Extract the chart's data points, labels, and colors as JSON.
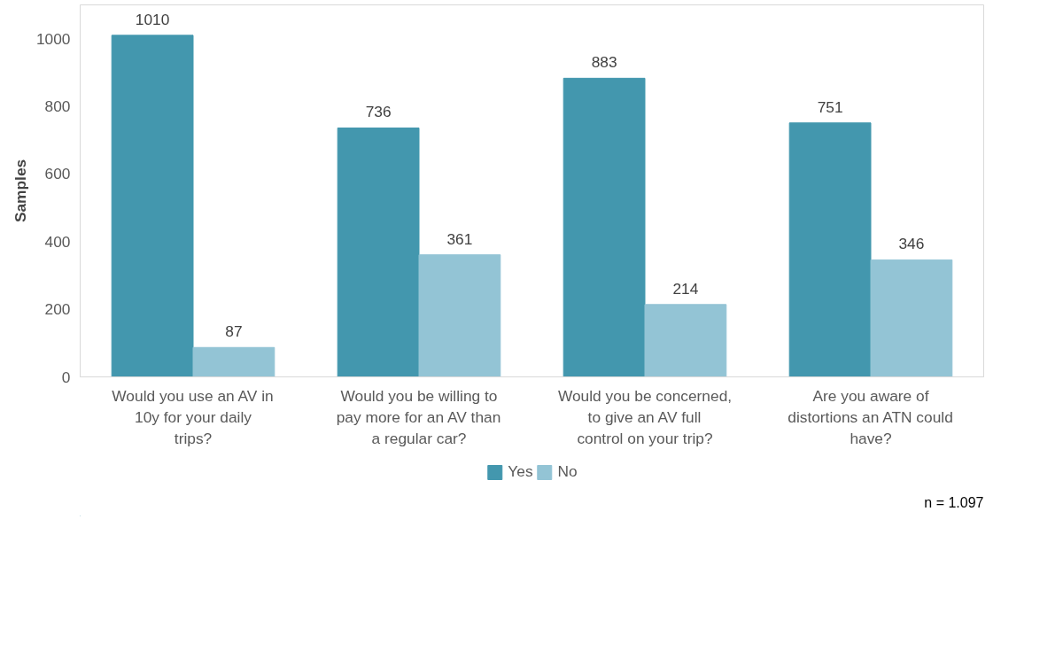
{
  "chart_data": {
    "type": "bar",
    "categories": [
      "Would you use an AV in 10y for your daily trips?",
      "Would you be willing to pay more for an AV than a regular car?",
      "Would you be concerned, to give an AV full control on your trip?",
      "Are you aware of distortions an ATN could have?"
    ],
    "series": [
      {
        "name": "Yes",
        "color": "#4397ae",
        "values": [
          1010,
          736,
          883,
          751
        ]
      },
      {
        "name": "No",
        "color": "#93c4d5",
        "values": [
          87,
          361,
          214,
          346
        ]
      }
    ],
    "ylabel": "Samples",
    "ylim": [
      0,
      1100
    ],
    "yticks": [
      0,
      200,
      400,
      600,
      800,
      1000
    ],
    "data_labels": true,
    "legend": "bottom",
    "grid": false,
    "annotations": [
      "n = 1.097"
    ]
  }
}
